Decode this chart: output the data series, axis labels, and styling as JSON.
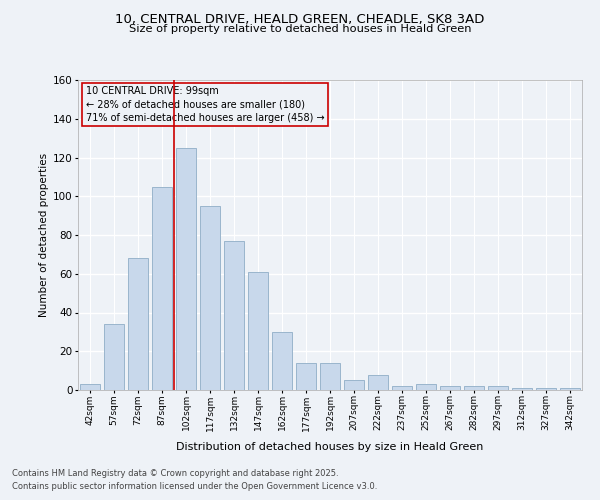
{
  "title1": "10, CENTRAL DRIVE, HEALD GREEN, CHEADLE, SK8 3AD",
  "title2": "Size of property relative to detached houses in Heald Green",
  "xlabel": "Distribution of detached houses by size in Heald Green",
  "ylabel": "Number of detached properties",
  "footer1": "Contains HM Land Registry data © Crown copyright and database right 2025.",
  "footer2": "Contains public sector information licensed under the Open Government Licence v3.0.",
  "annotation_line1": "10 CENTRAL DRIVE: 99sqm",
  "annotation_line2": "← 28% of detached houses are smaller (180)",
  "annotation_line3": "71% of semi-detached houses are larger (458) →",
  "bar_categories": [
    "42sqm",
    "57sqm",
    "72sqm",
    "87sqm",
    "102sqm",
    "117sqm",
    "132sqm",
    "147sqm",
    "162sqm",
    "177sqm",
    "192sqm",
    "207sqm",
    "222sqm",
    "237sqm",
    "252sqm",
    "267sqm",
    "282sqm",
    "297sqm",
    "312sqm",
    "327sqm",
    "342sqm"
  ],
  "bar_values": [
    3,
    34,
    68,
    105,
    125,
    95,
    77,
    61,
    30,
    14,
    14,
    5,
    8,
    2,
    3,
    2,
    2,
    2,
    1,
    1,
    1
  ],
  "bar_color": "#c8d8eb",
  "bar_edge_color": "#9ab5cc",
  "vline_color": "#cc0000",
  "annotation_box_color": "#cc0000",
  "background_color": "#eef2f7",
  "grid_color": "#ffffff",
  "ylim": [
    0,
    160
  ],
  "yticks": [
    0,
    20,
    40,
    60,
    80,
    100,
    120,
    140,
    160
  ]
}
